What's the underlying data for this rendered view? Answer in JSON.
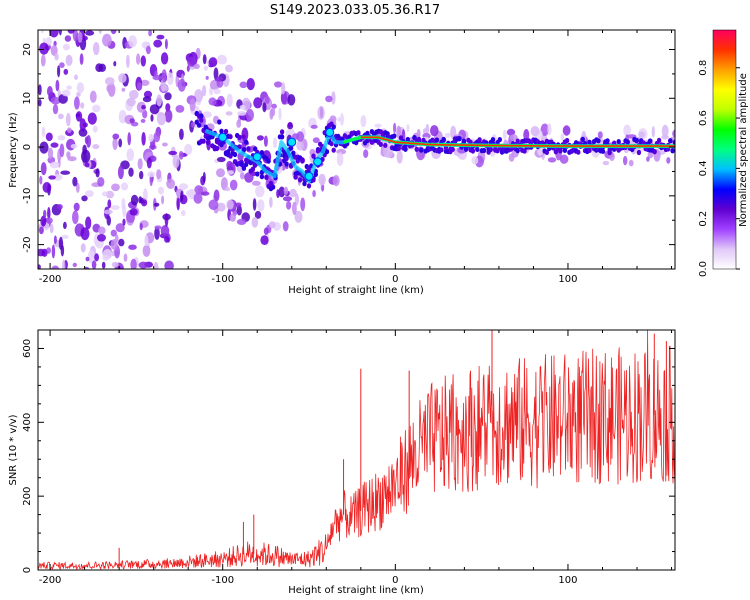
{
  "title": "S149.2023.033.05.36.R17",
  "chart_data": [
    {
      "type": "heatmap",
      "xlabel": "Height of straight line (km)",
      "ylabel": "Frequency (Hz)",
      "xlim": [
        -207,
        162
      ],
      "ylim": [
        -25,
        24
      ],
      "xticks": [
        -200,
        -100,
        0,
        100
      ],
      "yticks": [
        -20,
        -10,
        0,
        10,
        20
      ],
      "colorbar": {
        "label": "Normalized spectral amplitude",
        "range": [
          0,
          0.95
        ],
        "ticks": [
          0.0,
          0.2,
          0.4,
          0.6,
          0.8
        ],
        "colors": [
          "#ffffff",
          "#e0c8f8",
          "#a040ff",
          "#6000d0",
          "#0000ff",
          "#00c0ff",
          "#00ff80",
          "#00ff00",
          "#c0ff00",
          "#ffff00",
          "#ffa000",
          "#ff3000",
          "#ff0060"
        ]
      },
      "signal_trace": {
        "x": [
          -115,
          -100,
          -90,
          -80,
          -75,
          -70,
          -66,
          -62,
          -58,
          -54,
          -50,
          -46,
          -42,
          -38,
          -35,
          -30,
          -20,
          -10,
          0,
          20,
          60,
          100,
          162
        ],
        "y": [
          4,
          2,
          -1,
          -3,
          -5,
          -6,
          1,
          -1,
          -4,
          -5,
          -7,
          -3,
          -1,
          3,
          1,
          1,
          2,
          2,
          1,
          0.5,
          0.3,
          0.2,
          0.2
        ]
      }
    },
    {
      "type": "line",
      "xlabel": "Height of straight line (km)",
      "ylabel": "SNR (10 * v/v)",
      "xlim": [
        -207,
        162
      ],
      "ylim": [
        0,
        650
      ],
      "xticks": [
        -200,
        -100,
        0,
        100
      ],
      "yticks": [
        0,
        200,
        400,
        600
      ],
      "color": "#ee2222",
      "envelope": {
        "x": [
          -207,
          -180,
          -160,
          -130,
          -120,
          -100,
          -90,
          -85,
          -70,
          -60,
          -50,
          -40,
          -36,
          -30,
          -25,
          -20,
          -10,
          0,
          10,
          20,
          40,
          60,
          80,
          100,
          120,
          140,
          162
        ],
        "y": [
          12,
          12,
          14,
          18,
          22,
          30,
          40,
          45,
          40,
          28,
          30,
          60,
          120,
          150,
          140,
          160,
          190,
          230,
          300,
          350,
          380,
          400,
          400,
          410,
          415,
          420,
          420
        ]
      },
      "spikes": [
        {
          "x": -160,
          "y": 60
        },
        {
          "x": -88,
          "y": 130
        },
        {
          "x": -82,
          "y": 150
        },
        {
          "x": -20,
          "y": 545
        },
        {
          "x": -30,
          "y": 300
        },
        {
          "x": 8,
          "y": 540
        },
        {
          "x": 56,
          "y": 650
        },
        {
          "x": 150,
          "y": 640
        },
        {
          "x": 157,
          "y": 620
        }
      ]
    }
  ]
}
